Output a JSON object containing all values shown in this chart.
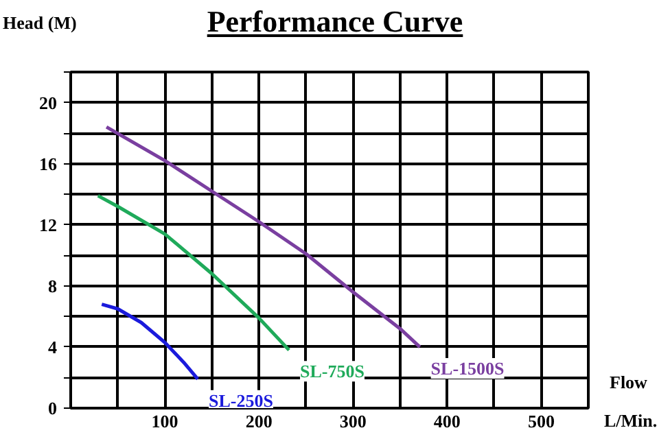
{
  "chart_data": {
    "type": "line",
    "title": "Performance Curve",
    "ylabel": "Head (M)",
    "xlabel": "Flow",
    "annotations": [
      "L/Min."
    ],
    "xlim": [
      0,
      550
    ],
    "ylim": [
      0,
      22
    ],
    "xticks": [
      {
        "value": 50,
        "label": null
      },
      100,
      {
        "value": 150,
        "label": null
      },
      200,
      {
        "value": 250,
        "label": null
      },
      300,
      {
        "value": 350,
        "label": null
      },
      400,
      {
        "value": 450,
        "label": null
      },
      500,
      {
        "value": 550,
        "label": null
      }
    ],
    "yticks": [
      0,
      {
        "value": 2,
        "label": null
      },
      4,
      {
        "value": 6,
        "label": null
      },
      8,
      {
        "value": 10,
        "label": null
      },
      12,
      {
        "value": 14,
        "label": null
      },
      16,
      {
        "value": 18,
        "label": null
      },
      20,
      {
        "value": 22,
        "label": null
      }
    ],
    "grid": true,
    "marker": "none",
    "line_style": "solid",
    "series": [
      {
        "name": "SL-250S",
        "color": "#1a1adc",
        "x": [
          33,
          50,
          75,
          100,
          120,
          135
        ],
        "values": [
          6.8,
          6.5,
          5.6,
          4.3,
          3.0,
          1.9
        ]
      },
      {
        "name": "SL-750S",
        "color": "#1faa5a",
        "x": [
          29,
          50,
          100,
          150,
          200,
          232
        ],
        "values": [
          13.9,
          13.2,
          11.4,
          8.8,
          5.9,
          3.8
        ]
      },
      {
        "name": "SL-1500S",
        "color": "#7a3fa0",
        "x": [
          38,
          100,
          150,
          200,
          250,
          300,
          350,
          371
        ],
        "values": [
          18.4,
          16.2,
          14.2,
          12.2,
          10.1,
          7.6,
          5.2,
          4.0
        ]
      }
    ]
  }
}
